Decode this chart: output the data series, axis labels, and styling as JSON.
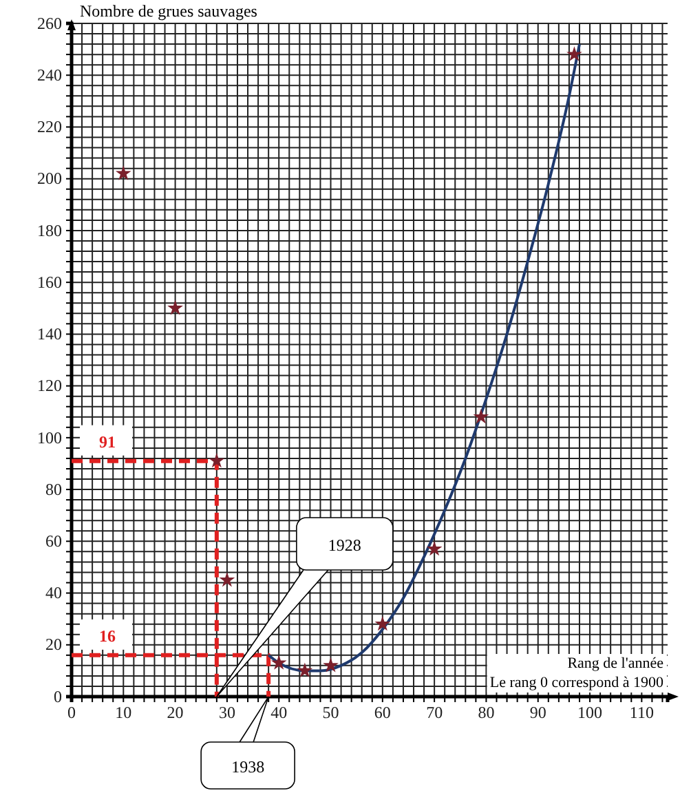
{
  "chart_data": {
    "type": "scatter",
    "ylabel": "Nombre de grues sauvages",
    "xlabel": "Rang de l'année\nLe rang 0 correspond à 1900",
    "xlim": [
      0,
      115
    ],
    "ylim": [
      0,
      260
    ],
    "grid": true,
    "xticks": [
      0,
      {
        "value": 2,
        "label": null
      },
      {
        "value": 4,
        "label": null
      },
      {
        "value": 6,
        "label": null
      },
      {
        "value": 8,
        "label": null
      },
      10,
      {
        "value": 12,
        "label": null
      },
      {
        "value": 14,
        "label": null
      },
      {
        "value": 16,
        "label": null
      },
      {
        "value": 18,
        "label": null
      },
      20,
      {
        "value": 22,
        "label": null
      },
      {
        "value": 24,
        "label": null
      },
      {
        "value": 26,
        "label": null
      },
      {
        "value": 28,
        "label": null
      },
      30,
      {
        "value": 32,
        "label": null
      },
      {
        "value": 34,
        "label": null
      },
      {
        "value": 36,
        "label": null
      },
      {
        "value": 38,
        "label": null
      },
      40,
      {
        "value": 42,
        "label": null
      },
      {
        "value": 44,
        "label": null
      },
      {
        "value": 46,
        "label": null
      },
      {
        "value": 48,
        "label": null
      },
      50,
      {
        "value": 52,
        "label": null
      },
      {
        "value": 54,
        "label": null
      },
      {
        "value": 56,
        "label": null
      },
      {
        "value": 58,
        "label": null
      },
      60,
      {
        "value": 62,
        "label": null
      },
      {
        "value": 64,
        "label": null
      },
      {
        "value": 66,
        "label": null
      },
      {
        "value": 68,
        "label": null
      },
      70,
      {
        "value": 72,
        "label": null
      },
      {
        "value": 74,
        "label": null
      },
      {
        "value": 76,
        "label": null
      },
      {
        "value": 78,
        "label": null
      },
      80,
      {
        "value": 82,
        "label": null
      },
      {
        "value": 84,
        "label": null
      },
      {
        "value": 86,
        "label": null
      },
      {
        "value": 88,
        "label": null
      },
      90,
      {
        "value": 92,
        "label": null
      },
      {
        "value": 94,
        "label": null
      },
      {
        "value": 96,
        "label": null
      },
      {
        "value": 98,
        "label": null
      },
      100,
      {
        "value": 102,
        "label": null
      },
      {
        "value": 104,
        "label": null
      },
      {
        "value": 106,
        "label": null
      },
      {
        "value": 108,
        "label": null
      },
      110,
      {
        "value": 112,
        "label": null
      },
      {
        "value": 114,
        "label": null
      }
    ],
    "yticks": [
      0,
      {
        "value": 4,
        "label": null
      },
      {
        "value": 8,
        "label": null
      },
      {
        "value": 12,
        "label": null
      },
      {
        "value": 16,
        "label": null
      },
      20,
      {
        "value": 24,
        "label": null
      },
      {
        "value": 28,
        "label": null
      },
      {
        "value": 32,
        "label": null
      },
      {
        "value": 36,
        "label": null
      },
      40,
      {
        "value": 44,
        "label": null
      },
      {
        "value": 48,
        "label": null
      },
      {
        "value": 52,
        "label": null
      },
      {
        "value": 56,
        "label": null
      },
      60,
      {
        "value": 64,
        "label": null
      },
      {
        "value": 68,
        "label": null
      },
      {
        "value": 72,
        "label": null
      },
      {
        "value": 76,
        "label": null
      },
      80,
      {
        "value": 84,
        "label": null
      },
      {
        "value": 88,
        "label": null
      },
      {
        "value": 92,
        "label": null
      },
      {
        "value": 96,
        "label": null
      },
      100,
      {
        "value": 104,
        "label": null
      },
      {
        "value": 108,
        "label": null
      },
      {
        "value": 112,
        "label": null
      },
      {
        "value": 116,
        "label": null
      },
      120,
      {
        "value": 124,
        "label": null
      },
      {
        "value": 128,
        "label": null
      },
      {
        "value": 132,
        "label": null
      },
      {
        "value": 136,
        "label": null
      },
      140,
      {
        "value": 144,
        "label": null
      },
      {
        "value": 148,
        "label": null
      },
      {
        "value": 152,
        "label": null
      },
      {
        "value": 156,
        "label": null
      },
      160,
      {
        "value": 164,
        "label": null
      },
      {
        "value": 168,
        "label": null
      },
      {
        "value": 172,
        "label": null
      },
      {
        "value": 176,
        "label": null
      },
      180,
      {
        "value": 184,
        "label": null
      },
      {
        "value": 188,
        "label": null
      },
      {
        "value": 192,
        "label": null
      },
      {
        "value": 196,
        "label": null
      },
      200,
      {
        "value": 204,
        "label": null
      },
      {
        "value": 208,
        "label": null
      },
      {
        "value": 212,
        "label": null
      },
      {
        "value": 216,
        "label": null
      },
      220,
      {
        "value": 224,
        "label": null
      },
      {
        "value": 228,
        "label": null
      },
      {
        "value": 232,
        "label": null
      },
      {
        "value": 236,
        "label": null
      },
      240,
      {
        "value": 244,
        "label": null
      },
      {
        "value": 248,
        "label": null
      },
      {
        "value": 252,
        "label": null
      },
      {
        "value": 256,
        "label": null
      },
      260
    ],
    "series": [
      {
        "marker": "star",
        "color": "#7a1f2b",
        "x": [
          10,
          20,
          28,
          30,
          40,
          45,
          50,
          60,
          70,
          79,
          97
        ],
        "values": [
          202,
          150,
          91,
          45,
          13,
          10,
          12,
          28,
          57,
          108,
          248
        ]
      },
      {
        "type": "line",
        "marker": "none",
        "line_style": "solid",
        "color": "#1f3a6e",
        "x": [
          38,
          40,
          45,
          48,
          52,
          56,
          60,
          64,
          68,
          72,
          76,
          80,
          84,
          88,
          92,
          96,
          98
        ],
        "values": [
          16,
          13,
          10,
          10,
          12,
          17,
          26,
          38,
          54,
          72,
          92,
          115,
          140,
          168,
          198,
          232,
          252
        ]
      },
      {
        "type": "line",
        "marker": "none",
        "line_style": "dashed",
        "color": "#e02020",
        "x": [
          0,
          28,
          28
        ],
        "values": [
          91,
          91,
          0
        ]
      },
      {
        "type": "line",
        "marker": "none",
        "line_style": "dashed",
        "color": "#e02020",
        "x": [
          0,
          38,
          38
        ],
        "values": [
          16,
          16,
          0
        ]
      }
    ],
    "annotations": [
      "91",
      "16",
      "1928",
      "1938"
    ]
  }
}
